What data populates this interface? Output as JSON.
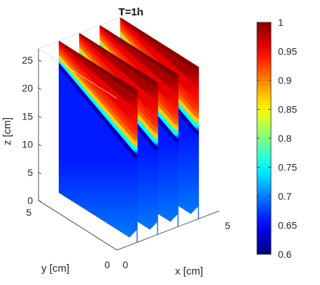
{
  "chart_data": {
    "type": "slice",
    "title": "T=1h",
    "xlabel": "x [cm]",
    "ylabel": "y [cm]",
    "zlabel": "z [cm]",
    "xlim": [
      0,
      5
    ],
    "ylim": [
      0,
      5
    ],
    "zlim": [
      0,
      25
    ],
    "x_ticks": [
      "0",
      "5"
    ],
    "y_ticks": [
      "0",
      "5"
    ],
    "z_ticks": [
      "0",
      "5",
      "10",
      "15",
      "20",
      "25"
    ],
    "slice_x_positions": [
      1,
      2,
      3,
      4
    ],
    "z_top": 27,
    "profile": {
      "z_front": [
        0,
        14.4,
        15.5,
        16.5,
        17.5,
        18.5,
        19.5,
        20.5,
        23.5,
        26,
        27
      ],
      "z_back": [
        0,
        22.2,
        23.2,
        23.8,
        24.6,
        25.3,
        25.8,
        26.3,
        26.7,
        26.9,
        27
      ],
      "value": [
        0.7,
        0.66,
        0.62,
        0.75,
        0.87,
        0.91,
        0.93,
        0.94,
        0.96,
        0.985,
        1.0
      ]
    },
    "colorbar": {
      "colormap": "jet",
      "clim": [
        0.6,
        1
      ],
      "ticks": [
        "0.6",
        "0.65",
        "0.7",
        "0.75",
        "0.8",
        "0.85",
        "0.9",
        "0.95",
        "1"
      ]
    }
  }
}
